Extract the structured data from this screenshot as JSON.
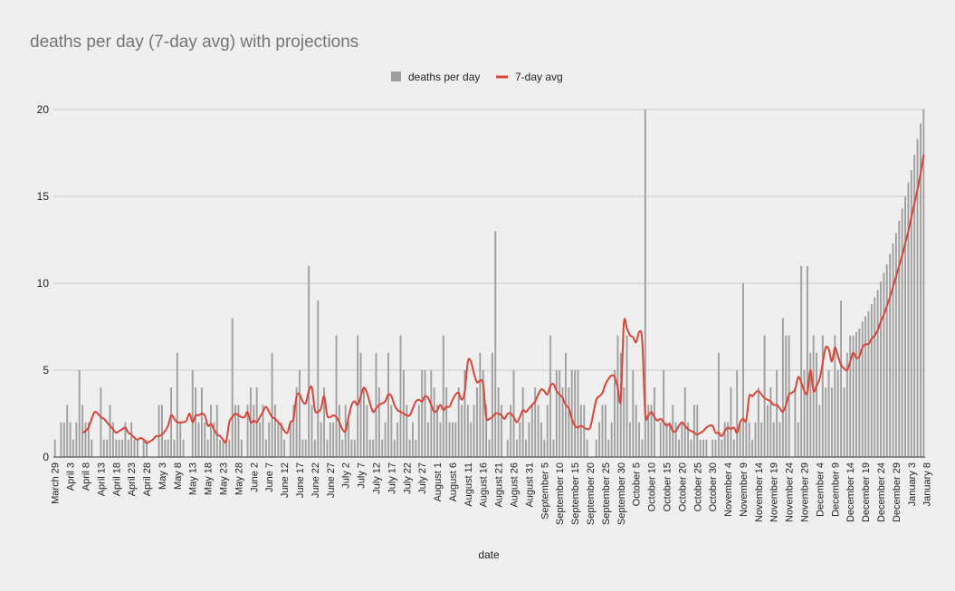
{
  "chart_data": {
    "type": "bar",
    "title": "deaths per day (7-day avg) with projections",
    "xlabel": "date",
    "ylabel": "",
    "ylim": [
      0,
      20
    ],
    "yticks": [
      0,
      5,
      10,
      15,
      20
    ],
    "grid": true,
    "legend_position": "top-center",
    "x_start": "March 29",
    "tick_labels": [
      "March 29",
      "April 3",
      "April 8",
      "April 13",
      "April 18",
      "April 23",
      "April 28",
      "May 3",
      "May 8",
      "May 13",
      "May 18",
      "May 23",
      "May 28",
      "June 2",
      "June 7",
      "June 12",
      "June 17",
      "June 22",
      "June 27",
      "July 2",
      "July 7",
      "July 12",
      "July 17",
      "July 22",
      "July 27",
      "August 1",
      "August 6",
      "August 11",
      "August 16",
      "August 21",
      "August 26",
      "August 31",
      "September 5",
      "September 10",
      "September 15",
      "September 20",
      "September 25",
      "September 30",
      "October 5",
      "October 10",
      "October 15",
      "October 20",
      "October 25",
      "October 30",
      "November 4",
      "November 9",
      "November 14",
      "November 19",
      "November 24",
      "November 29",
      "December 4",
      "December 9",
      "December 14",
      "December 19",
      "December 24",
      "December 29",
      "January 3",
      "January 8"
    ],
    "series": [
      {
        "name": "deaths per day",
        "kind": "bar",
        "color": "#9e9e9e",
        "values": [
          1,
          0,
          2,
          2,
          3,
          2,
          1,
          2,
          5,
          3,
          2,
          2,
          1,
          0,
          0,
          4,
          1,
          1,
          3,
          2,
          1,
          1,
          1,
          2,
          1,
          2,
          1,
          1,
          0,
          1,
          1,
          0,
          0,
          0,
          3,
          3,
          1,
          1,
          4,
          1,
          6,
          2,
          1,
          0,
          0,
          5,
          4,
          2,
          4,
          2,
          1,
          3,
          2,
          3,
          1,
          1,
          1,
          1,
          8,
          3,
          3,
          1,
          0,
          3,
          4,
          3,
          4,
          2,
          3,
          1,
          2,
          6,
          3,
          2,
          2,
          1,
          0,
          2,
          3,
          4,
          5,
          1,
          1,
          11,
          3,
          1,
          9,
          2,
          4,
          1,
          2,
          2,
          7,
          3,
          1,
          3,
          2,
          1,
          1,
          7,
          6,
          4,
          3,
          1,
          1,
          6,
          4,
          1,
          2,
          6,
          3,
          1,
          2,
          7,
          5,
          3,
          1,
          2,
          1,
          3,
          5,
          5,
          2,
          5,
          4,
          3,
          2,
          7,
          4,
          2,
          2,
          2,
          4,
          3,
          5,
          3,
          2,
          3,
          4,
          6,
          5,
          3,
          1,
          6,
          13,
          4,
          3,
          0,
          1,
          3,
          5,
          1,
          2,
          4,
          1,
          2,
          3,
          4,
          3,
          2,
          1,
          3,
          7,
          1,
          5,
          5,
          4,
          6,
          4,
          5,
          5,
          5,
          3,
          3,
          1,
          0,
          0,
          1,
          2,
          3,
          3,
          1,
          2,
          5,
          7,
          6,
          4,
          7,
          2,
          5,
          3,
          2,
          1,
          20,
          3,
          3,
          4,
          0,
          2,
          5,
          2,
          2,
          3,
          2,
          1,
          2,
          4,
          2,
          1,
          3,
          3,
          1,
          1,
          1,
          0,
          1,
          1,
          6,
          1,
          2,
          2,
          4,
          1,
          5,
          2,
          10,
          2,
          2,
          1,
          2,
          4,
          2,
          7,
          3,
          4,
          2,
          5,
          2,
          8,
          7,
          7,
          0,
          4,
          2,
          11,
          5,
          11,
          6,
          7,
          6,
          3,
          7,
          4,
          5,
          4,
          7,
          5,
          9,
          4,
          6,
          7,
          7,
          7.2,
          7.4,
          7.8,
          8.1,
          8.4,
          8.8,
          9.2,
          9.6,
          10.1,
          10.6,
          11.1,
          11.7,
          12.3,
          12.9,
          13.6,
          14.3,
          15,
          15.8,
          16.5,
          17.4,
          18.3,
          19.2,
          20
        ]
      },
      {
        "name": "7-day avg",
        "kind": "line",
        "color": "#db4437",
        "start_index": 9,
        "values": [
          1.4,
          1.5,
          1.7,
          2.2,
          2.6,
          2.5,
          2.3,
          2.2,
          2.0,
          1.8,
          1.6,
          1.4,
          1.5,
          1.6,
          1.7,
          1.4,
          1.3,
          1.1,
          1.0,
          1.1,
          1.0,
          0.8,
          0.9,
          1.0,
          1.2,
          1.2,
          1.3,
          1.5,
          1.8,
          2.4,
          2.2,
          2.0,
          2.0,
          2.0,
          2.1,
          2.5,
          2.0,
          2.4,
          2.4,
          2.5,
          2.4,
          1.8,
          1.9,
          1.6,
          1.3,
          1.2,
          1.0,
          0.9,
          2.0,
          2.3,
          2.5,
          2.4,
          2.3,
          2.3,
          2.6,
          2.0,
          2.1,
          2.0,
          2.3,
          2.6,
          2.9,
          2.6,
          2.3,
          2.2,
          2.0,
          1.8,
          1.5,
          1.4,
          2.0,
          2.2,
          3.5,
          3.6,
          3.2,
          3.1,
          3.8,
          4.0,
          2.7,
          2.6,
          2.8,
          3.5,
          2.4,
          2.3,
          2.4,
          2.3,
          2.0,
          1.6,
          1.5,
          2.3,
          3.0,
          3.2,
          3.0,
          3.5,
          4.0,
          3.7,
          3.1,
          2.6,
          2.8,
          3.0,
          3.1,
          3.2,
          3.6,
          3.5,
          3.0,
          2.7,
          2.6,
          2.5,
          2.4,
          2.4,
          2.8,
          3.2,
          3.3,
          3.2,
          3.5,
          3.4,
          3.0,
          2.6,
          2.7,
          3.0,
          2.7,
          2.9,
          2.9,
          3.3,
          3.6,
          3.7,
          3.3,
          3.8,
          5.5,
          5.5,
          4.8,
          4.3,
          4.4,
          4.2,
          2.3,
          2.2,
          2.3,
          2.5,
          2.5,
          2.4,
          2.2,
          2.5,
          2.5,
          2.3,
          2.0,
          2.3,
          2.7,
          2.6,
          2.8,
          3.0,
          3.2,
          3.6,
          3.9,
          3.8,
          3.6,
          4.1,
          4.2,
          3.8,
          3.6,
          3.4,
          3.0,
          2.8,
          2.2,
          1.8,
          1.7,
          1.8,
          1.7,
          1.6,
          1.7,
          2.5,
          3.3,
          3.5,
          3.7,
          4.2,
          4.5,
          4.7,
          4.6,
          4.0,
          3.3,
          7.7,
          7.4,
          7.0,
          6.9,
          6.6,
          7.2,
          6.7,
          2.5,
          2.4,
          2.6,
          2.3,
          2.1,
          2.2,
          2.0,
          1.8,
          1.9,
          1.5,
          1.5,
          1.8,
          2.0,
          1.8,
          1.6,
          1.5,
          1.4,
          1.3,
          1.4,
          1.5,
          1.7,
          1.8,
          1.8,
          1.4,
          1.4,
          1.2,
          1.5,
          1.7,
          1.6,
          1.7,
          1.4,
          2.0,
          2.2,
          2.1,
          3.5,
          3.5,
          3.7,
          3.8,
          3.6,
          3.4,
          3.3,
          3.2,
          3.0,
          3.0,
          2.8,
          2.6,
          3.0,
          3.6,
          3.7,
          3.9,
          4.6,
          4.3,
          3.8,
          3.7,
          5.0,
          3.8,
          4.1,
          4.5,
          5.4,
          6.3,
          6.2,
          5.5,
          6.3,
          5.8,
          5.3,
          5.1,
          5.0,
          5.5,
          6.0,
          5.7,
          5.8,
          6.3,
          6.5,
          6.5,
          6.8,
          7.0,
          7.3,
          7.8,
          8.2,
          8.7,
          9.2,
          9.8,
          10.4,
          11.0,
          11.6,
          12.3,
          13.0,
          13.8,
          14.6,
          15.4,
          16.3,
          17.4
        ]
      }
    ],
    "legend": [
      {
        "label": "deaths per day",
        "color": "#9e9e9e",
        "marker": "square"
      },
      {
        "label": "7-day avg",
        "color": "#db4437",
        "marker": "line"
      }
    ]
  }
}
